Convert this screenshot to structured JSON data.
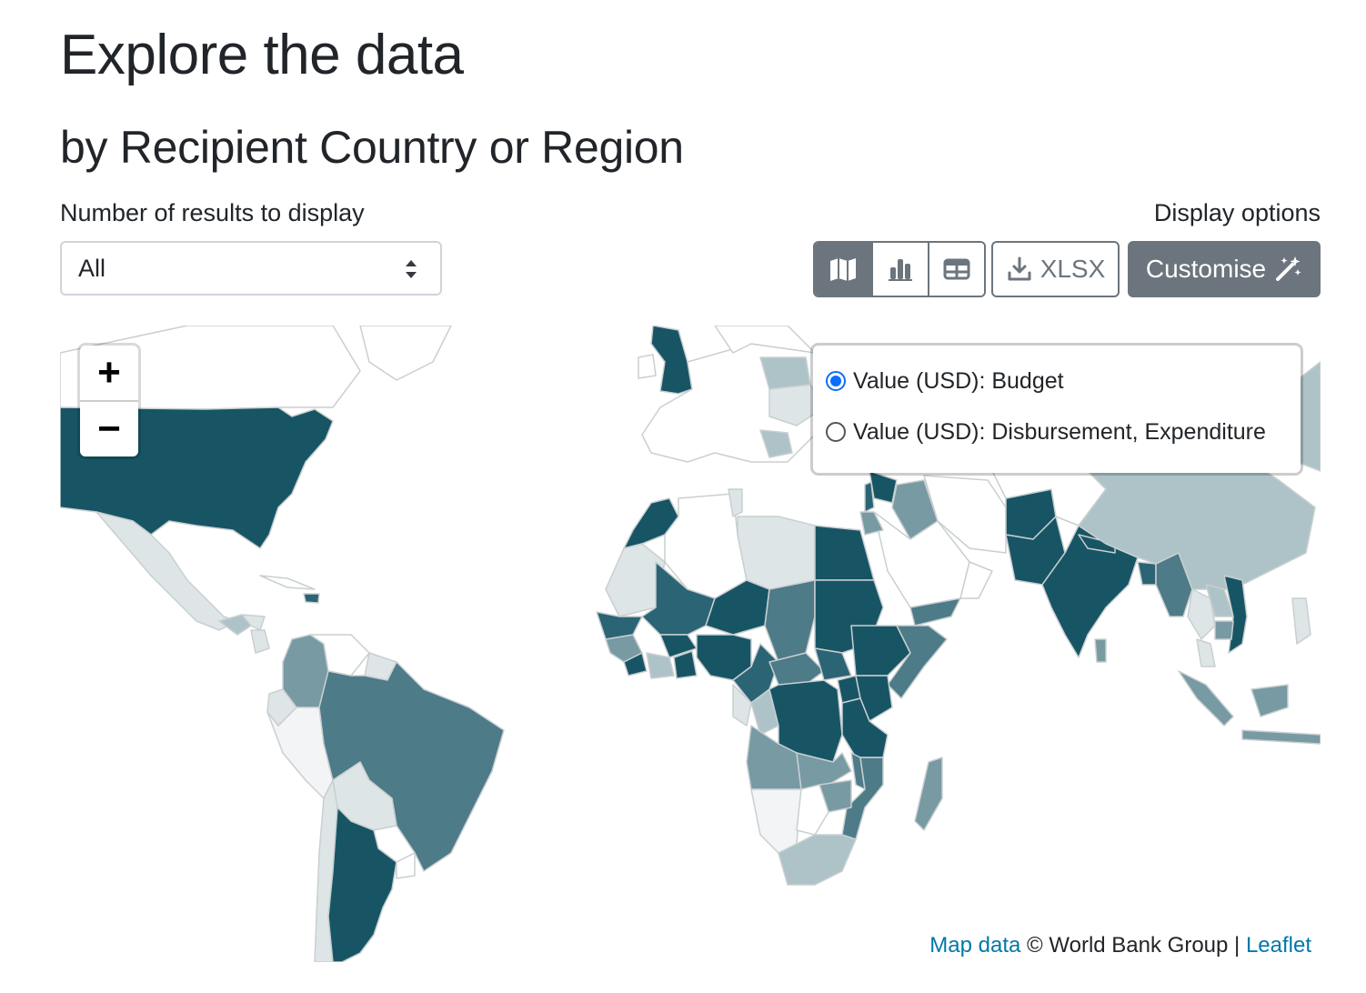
{
  "page": {
    "title": "Explore the data",
    "section_title": "by Recipient Country or Region"
  },
  "controls": {
    "results_label": "Number of results to display",
    "results_value": "All",
    "display_label": "Display options",
    "view_buttons": [
      {
        "name": "map",
        "icon": "map-icon",
        "active": true
      },
      {
        "name": "bar-chart",
        "icon": "bar-chart-icon",
        "active": false
      },
      {
        "name": "table",
        "icon": "table-icon",
        "active": false
      }
    ],
    "xlsx_label": "XLSX",
    "customise_label": "Customise"
  },
  "map": {
    "zoom_in": "+",
    "zoom_out": "−",
    "layer_options": [
      {
        "label": "Value (USD): Budget",
        "selected": true
      },
      {
        "label": "Value (USD): Disbursement, Expenditure",
        "selected": false
      }
    ],
    "attribution": {
      "map_data_link": "Map data",
      "copyright": "© World Bank Group |",
      "leaflet_link": "Leaflet"
    },
    "colors": {
      "darkest": "#175565",
      "dark": "#2b6474",
      "medium": "#4d7b87",
      "light": "#779aa3",
      "lighter": "#aec3c8",
      "lightest": "#dde5e7",
      "none": "#ffffff",
      "border": "#c9cfd1"
    }
  }
}
